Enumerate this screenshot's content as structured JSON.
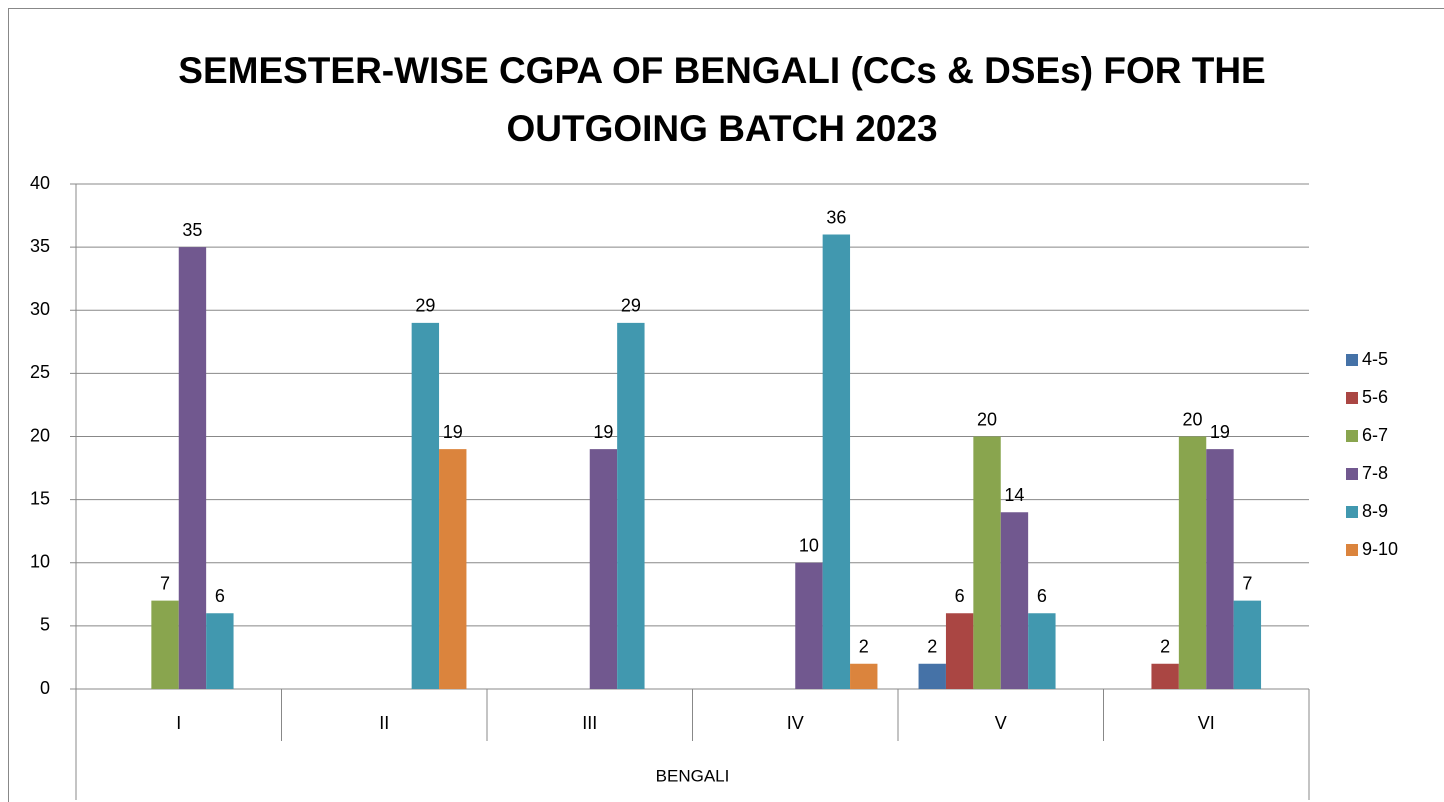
{
  "chart_data": {
    "type": "bar",
    "title": "SEMESTER-WISE CGPA OF BENGALI (CCs & DSEs) FOR THE OUTGOING BATCH 2023",
    "categories": [
      "I",
      "II",
      "III",
      "IV",
      "V",
      "VI"
    ],
    "group_label": "BENGALI",
    "series": [
      {
        "name": "4-5",
        "color": "#4572a7",
        "values": [
          null,
          null,
          null,
          null,
          2,
          null
        ]
      },
      {
        "name": "5-6",
        "color": "#aa4643",
        "values": [
          null,
          null,
          null,
          null,
          6,
          2
        ]
      },
      {
        "name": "6-7",
        "color": "#89a54e",
        "values": [
          7,
          null,
          null,
          null,
          20,
          20
        ]
      },
      {
        "name": "7-8",
        "color": "#71588f",
        "values": [
          35,
          null,
          19,
          10,
          14,
          19
        ]
      },
      {
        "name": "8-9",
        "color": "#4198af",
        "values": [
          6,
          29,
          29,
          36,
          6,
          7
        ]
      },
      {
        "name": "9-10",
        "color": "#db843d",
        "values": [
          null,
          19,
          null,
          2,
          null,
          null
        ]
      }
    ],
    "ylim": [
      0,
      40
    ],
    "yticks": [
      0,
      5,
      10,
      15,
      20,
      25,
      30,
      35,
      40
    ],
    "grid": true,
    "legend": "right"
  }
}
